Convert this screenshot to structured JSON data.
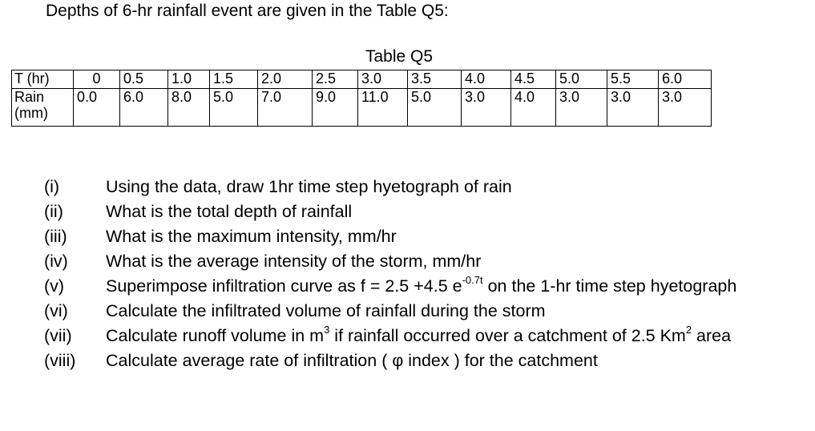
{
  "intro": "Depths of 6-hr rainfall event are given in the Table Q5:",
  "table": {
    "title": "Table Q5",
    "row1_header": "T (hr)",
    "row2_header": "Rain (mm)",
    "time": [
      "0",
      "0.5",
      "1.0",
      "1.5",
      "2.0",
      "2.5",
      "3.0",
      "3.5",
      "4.0",
      "4.5",
      "5.0",
      "5.5",
      "6.0"
    ],
    "rain": [
      "0.0",
      "6.0",
      "8.0",
      "5.0",
      "7.0",
      "9.0",
      "11.0",
      "5.0",
      "3.0",
      "4.0",
      "3.0",
      "3.0",
      "3.0"
    ]
  },
  "questions": [
    {
      "num": "(i)",
      "text": "Using the data, draw 1hr time step hyetograph of rain"
    },
    {
      "num": "(ii)",
      "text": "What is the total depth of rainfall"
    },
    {
      "num": "(iii)",
      "text": "What is the maximum intensity, mm/hr"
    },
    {
      "num": "(iv)",
      "text": "What is the average intensity of the storm, mm/hr"
    },
    {
      "num": "(v)",
      "text_a": "Superimpose infiltration curve as f = 2.5 +4.5 e",
      "sup": "-0.7t",
      "text_b": " on the 1-hr time step hyetograph"
    },
    {
      "num": "(vi)",
      "text": "Calculate the infiltrated volume of rainfall during the storm"
    },
    {
      "num": "(vii)",
      "text_a": "Calculate runoff volume in m",
      "sup_a": "3",
      "text_b": " if rainfall occurred over a catchment of 2.5 Km",
      "sup_b": "2",
      "text_c": " area"
    },
    {
      "num": "(viii)",
      "text": "Calculate average rate of infiltration ( φ index ) for the catchment"
    }
  ]
}
